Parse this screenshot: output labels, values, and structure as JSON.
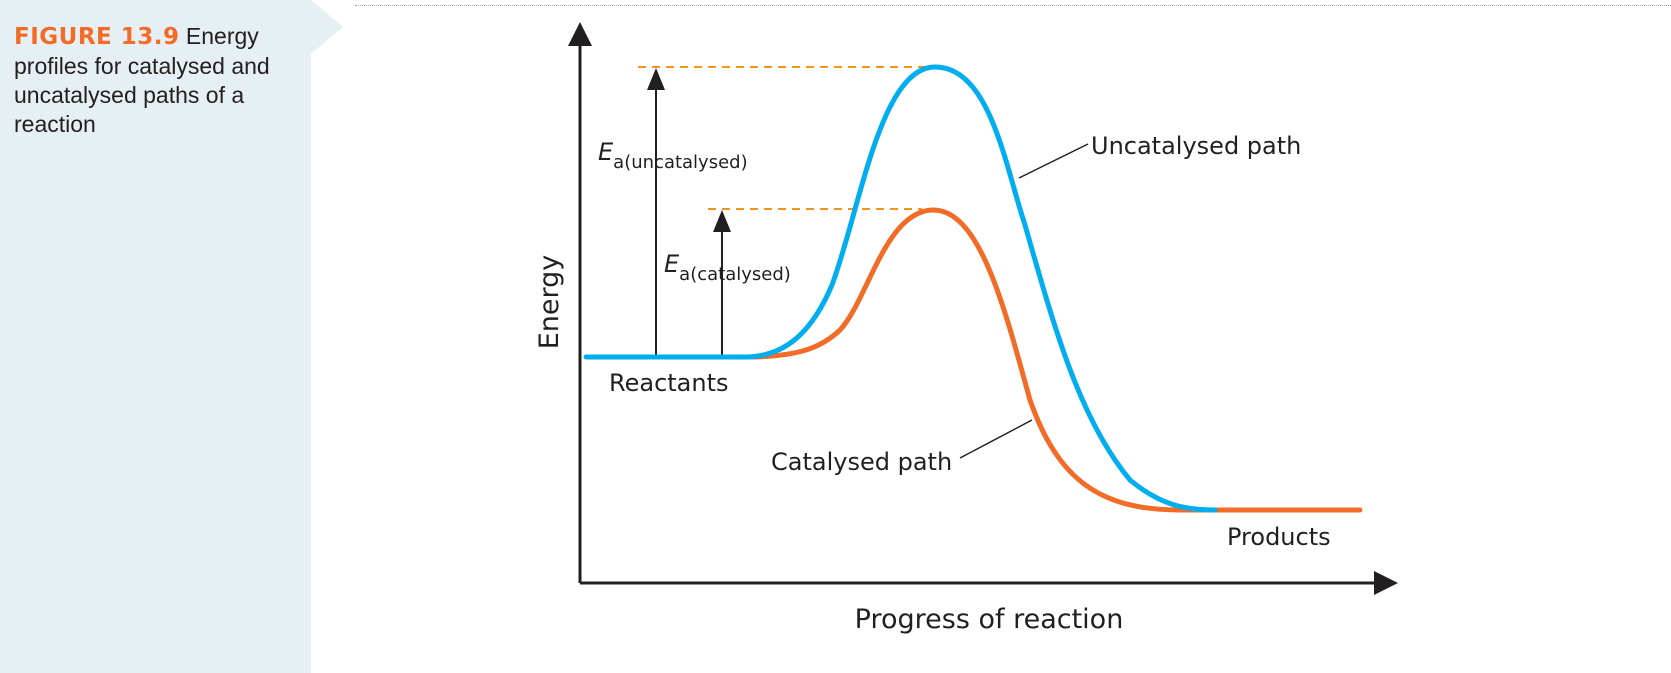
{
  "caption": {
    "label": "FIGURE 13.9",
    "text": "Energy profiles for catalysed and uncatalysed paths of a reaction"
  },
  "diagram": {
    "y_axis_label": "Energy",
    "x_axis_label": "Progress of reaction",
    "ea_uncatalysed": {
      "symbol": "E",
      "subscript": "a(uncatalysed)"
    },
    "ea_catalysed": {
      "symbol": "E",
      "subscript": "a(catalysed)"
    },
    "labels": {
      "uncatalysed_path": "Uncatalysed path",
      "catalysed_path": "Catalysed path",
      "reactants": "Reactants",
      "products": "Products"
    },
    "colors": {
      "uncatalysed": "#00aeef",
      "catalysed": "#f26c27",
      "dashed_guides": "#f7941d",
      "axes": "#231f20",
      "caption_label": "#f26c27",
      "sidebar": "#e6eff3"
    }
  }
}
